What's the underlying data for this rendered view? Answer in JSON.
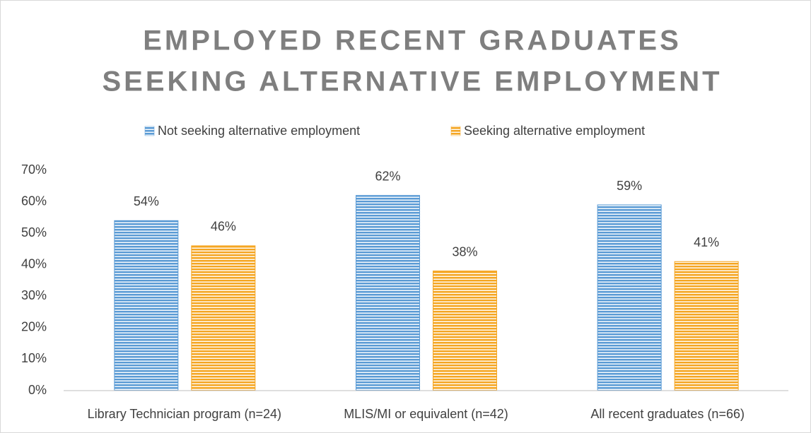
{
  "chart_data": {
    "type": "bar",
    "title": [
      "EMPLOYED RECENT GRADUATES",
      "SEEKING ALTERNATIVE EMPLOYMENT"
    ],
    "categories": [
      "Library Technician program (n=24)",
      "MLIS/MI or equivalent (n=42)",
      "All recent graduates (n=66)"
    ],
    "series": [
      {
        "name": "Not seeking alternative employment",
        "color": "#5b9bd5",
        "values": [
          54,
          62,
          59
        ],
        "value_labels": [
          "54%",
          "62%",
          "59%"
        ]
      },
      {
        "name": "Seeking alternative employment",
        "color": "#f5a623",
        "values": [
          46,
          38,
          41
        ],
        "value_labels": [
          "46%",
          "38%",
          "41%"
        ]
      }
    ],
    "ylim": [
      0,
      70
    ],
    "yticks": [
      {
        "value": 0,
        "label": "0%"
      },
      {
        "value": 10,
        "label": "10%"
      },
      {
        "value": 20,
        "label": "20%"
      },
      {
        "value": 30,
        "label": "30%"
      },
      {
        "value": 40,
        "label": "40%"
      },
      {
        "value": 50,
        "label": "50%"
      },
      {
        "value": 60,
        "label": "60%"
      },
      {
        "value": 70,
        "label": "70%"
      }
    ],
    "grid": false,
    "legend": "top"
  }
}
